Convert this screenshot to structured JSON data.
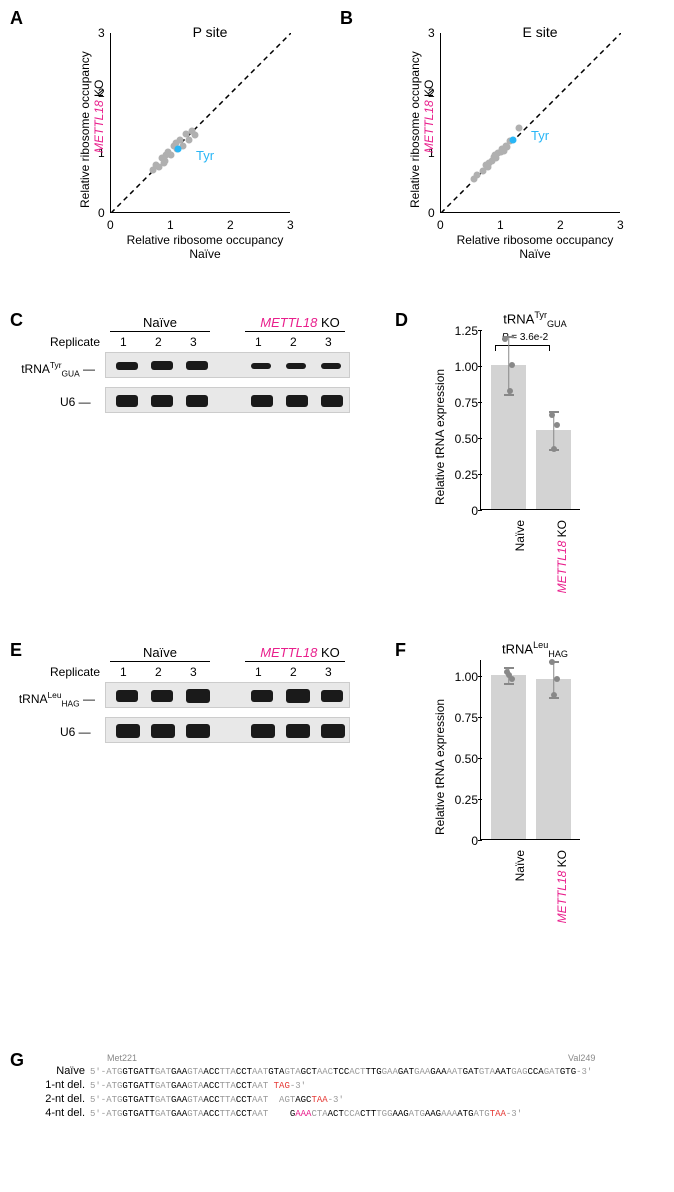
{
  "panels": {
    "A": {
      "label": "A",
      "title": "P site",
      "xlabel_line1": "Relative ribosome occupancy",
      "xlabel_line2": "Naïve",
      "ylabel_line1": "Relative ribosome occupancy",
      "ylabel_line2_a": "METTL18",
      "ylabel_line2_b": " KO",
      "xlim": [
        0,
        3
      ],
      "ylim": [
        0,
        3
      ],
      "xticks": [
        0,
        1,
        2,
        3
      ],
      "yticks": [
        0,
        1,
        2,
        3
      ],
      "diagonal": true,
      "gray_color": "#b0b0b0",
      "cyan_color": "#29b6f6",
      "points_gray": [
        [
          0.7,
          0.7
        ],
        [
          0.75,
          0.78
        ],
        [
          0.8,
          0.75
        ],
        [
          0.85,
          0.9
        ],
        [
          0.9,
          0.85
        ],
        [
          0.92,
          0.95
        ],
        [
          0.95,
          1.0
        ],
        [
          1.0,
          0.95
        ],
        [
          1.05,
          1.1
        ],
        [
          1.1,
          1.05
        ],
        [
          1.15,
          1.2
        ],
        [
          1.2,
          1.1
        ],
        [
          1.25,
          1.3
        ],
        [
          1.3,
          1.2
        ],
        [
          1.35,
          1.35
        ],
        [
          1.4,
          1.28
        ],
        [
          0.88,
          0.82
        ],
        [
          1.08,
          1.15
        ]
      ],
      "point_cyan": [
        1.12,
        1.05
      ],
      "point_label": "Tyr"
    },
    "B": {
      "label": "B",
      "title": "E site",
      "xlabel_line1": "Relative ribosome occupancy",
      "xlabel_line2": "Naïve",
      "ylabel_line1": "Relative ribosome occupancy",
      "ylabel_line2_a": "METTL18",
      "ylabel_line2_b": " KO",
      "xlim": [
        0,
        3
      ],
      "ylim": [
        0,
        3
      ],
      "xticks": [
        0,
        1,
        2,
        3
      ],
      "yticks": [
        0,
        1,
        2,
        3
      ],
      "diagonal": true,
      "gray_color": "#b0b0b0",
      "cyan_color": "#29b6f6",
      "points_gray": [
        [
          0.55,
          0.55
        ],
        [
          0.6,
          0.62
        ],
        [
          0.7,
          0.68
        ],
        [
          0.75,
          0.78
        ],
        [
          0.8,
          0.82
        ],
        [
          0.85,
          0.85
        ],
        [
          0.88,
          0.92
        ],
        [
          0.92,
          0.9
        ],
        [
          0.95,
          0.98
        ],
        [
          1.0,
          1.0
        ],
        [
          1.02,
          1.05
        ],
        [
          1.05,
          1.02
        ],
        [
          1.08,
          1.1
        ],
        [
          1.1,
          1.08
        ],
        [
          1.15,
          1.18
        ],
        [
          1.3,
          1.4
        ],
        [
          0.78,
          0.75
        ],
        [
          0.9,
          0.95
        ]
      ],
      "point_cyan": [
        1.2,
        1.2
      ],
      "point_label": "Tyr"
    },
    "C": {
      "label": "C",
      "header1": "Naïve",
      "header2_a": "METTL18",
      "header2_b": " KO",
      "replicate_label": "Replicate",
      "replicates": [
        "1",
        "2",
        "3"
      ],
      "row1_label_a": "tRNA",
      "row1_label_b": "Tyr",
      "row1_label_c": "GUA",
      "row2_label": "U6"
    },
    "D": {
      "label": "D",
      "title_a": "tRNA",
      "title_b": "Tyr",
      "title_c": "GUA",
      "ylabel": "Relative tRNA expression",
      "yticks": [
        "0",
        "0.25",
        "0.50",
        "0.75",
        "1.00",
        "1.25"
      ],
      "ylim": [
        0,
        1.25
      ],
      "bars": [
        {
          "label": "Naïve",
          "value": 1.0,
          "dots": [
            1.0,
            1.18,
            0.82
          ],
          "err": 0.2,
          "label_color": "#000"
        },
        {
          "label_a": "METTL18",
          "label_b": " KO",
          "value": 0.55,
          "dots": [
            0.65,
            0.58,
            0.42
          ],
          "err": 0.13,
          "label_color": "#e91e8c"
        }
      ],
      "pvalue_a": "P",
      "pvalue_b": " = 3.6e-2",
      "bar_color": "#d3d3d3"
    },
    "E": {
      "label": "E",
      "header1": "Naïve",
      "header2_a": "METTL18",
      "header2_b": " KO",
      "replicate_label": "Replicate",
      "replicates": [
        "1",
        "2",
        "3"
      ],
      "row1_label_a": "tRNA",
      "row1_label_b": "Leu",
      "row1_label_c": "HAG",
      "row2_label": "U6"
    },
    "F": {
      "label": "F",
      "title_a": "tRNA",
      "title_b": "Leu",
      "title_c": "HAG",
      "ylabel": "Relative tRNA expression",
      "yticks": [
        "0",
        "0.25",
        "0.50",
        "0.75",
        "1.00"
      ],
      "ylim": [
        0,
        1.1
      ],
      "bars": [
        {
          "label": "Naïve",
          "value": 1.0,
          "dots": [
            1.02,
            0.98,
            1.0
          ],
          "err": 0.05,
          "label_color": "#000"
        },
        {
          "label_a": "METTL18",
          "label_b": " KO",
          "value": 0.98,
          "dots": [
            1.08,
            0.98,
            0.88
          ],
          "err": 0.11,
          "label_color": "#e91e8c"
        }
      ],
      "bar_color": "#d3d3d3"
    },
    "G": {
      "label": "G",
      "marker_left": "Met221",
      "marker_right": "Val249",
      "rows": [
        {
          "label": "Naïve",
          "prefix": "5'-",
          "segments": [
            {
              "text": "ATG",
              "color": "#999"
            },
            {
              "text": "GTGATT",
              "color": "#000"
            },
            {
              "text": "GAT",
              "color": "#999"
            },
            {
              "text": "GAA",
              "color": "#000"
            },
            {
              "text": "GTA",
              "color": "#999"
            },
            {
              "text": "ACC",
              "color": "#000"
            },
            {
              "text": "TTA",
              "color": "#999"
            },
            {
              "text": "CCT",
              "color": "#000"
            },
            {
              "text": "AAT",
              "color": "#999"
            },
            {
              "text": "GTA",
              "color": "#000"
            },
            {
              "text": "GTA",
              "color": "#999"
            },
            {
              "text": "GCT",
              "color": "#000"
            },
            {
              "text": "AAC",
              "color": "#999"
            },
            {
              "text": "TCC",
              "color": "#000"
            },
            {
              "text": "ACT",
              "color": "#999"
            },
            {
              "text": "TTG",
              "color": "#000"
            },
            {
              "text": "GAA",
              "color": "#999"
            },
            {
              "text": "GAT",
              "color": "#000"
            },
            {
              "text": "GAA",
              "color": "#999"
            },
            {
              "text": "GAA",
              "color": "#000"
            },
            {
              "text": "AAT",
              "color": "#999"
            },
            {
              "text": "GAT",
              "color": "#000"
            },
            {
              "text": "GTA",
              "color": "#999"
            },
            {
              "text": "AAT",
              "color": "#000"
            },
            {
              "text": "GAG",
              "color": "#999"
            },
            {
              "text": "CCA",
              "color": "#000"
            },
            {
              "text": "GAT",
              "color": "#999"
            },
            {
              "text": "GTG",
              "color": "#000"
            }
          ],
          "suffix": "-3'"
        },
        {
          "label": "1-nt del.",
          "prefix": "5'-",
          "segments": [
            {
              "text": "ATG",
              "color": "#999"
            },
            {
              "text": "GTGATT",
              "color": "#000"
            },
            {
              "text": "GAT",
              "color": "#999"
            },
            {
              "text": "GAA",
              "color": "#000"
            },
            {
              "text": "GTA",
              "color": "#999"
            },
            {
              "text": "ACC",
              "color": "#000"
            },
            {
              "text": "TTA",
              "color": "#999"
            },
            {
              "text": "CCT",
              "color": "#000"
            },
            {
              "text": "AAT",
              "color": "#999"
            },
            {
              "text": " ",
              "color": "#000"
            },
            {
              "text": "TAG",
              "color": "#e53935"
            }
          ],
          "suffix": "-3'"
        },
        {
          "label": "2-nt del.",
          "prefix": "5'-",
          "segments": [
            {
              "text": "ATG",
              "color": "#999"
            },
            {
              "text": "GTGATT",
              "color": "#000"
            },
            {
              "text": "GAT",
              "color": "#999"
            },
            {
              "text": "GAA",
              "color": "#000"
            },
            {
              "text": "GTA",
              "color": "#999"
            },
            {
              "text": "ACC",
              "color": "#000"
            },
            {
              "text": "TTA",
              "color": "#999"
            },
            {
              "text": "CCT",
              "color": "#000"
            },
            {
              "text": "AAT",
              "color": "#999"
            },
            {
              "text": "  ",
              "color": "#000"
            },
            {
              "text": "AGT",
              "color": "#999"
            },
            {
              "text": "AGC",
              "color": "#000"
            },
            {
              "text": "TAA",
              "color": "#e53935"
            }
          ],
          "suffix": "-3'"
        },
        {
          "label": "4-nt del.",
          "prefix": "5'-",
          "segments": [
            {
              "text": "ATG",
              "color": "#999"
            },
            {
              "text": "GTGATT",
              "color": "#000"
            },
            {
              "text": "GAT",
              "color": "#999"
            },
            {
              "text": "GAA",
              "color": "#000"
            },
            {
              "text": "GTA",
              "color": "#999"
            },
            {
              "text": "ACC",
              "color": "#000"
            },
            {
              "text": "TTA",
              "color": "#999"
            },
            {
              "text": "CCT",
              "color": "#000"
            },
            {
              "text": "AAT",
              "color": "#999"
            },
            {
              "text": "    G",
              "color": "#000"
            },
            {
              "text": "AAA",
              "color": "#e91e8c"
            },
            {
              "text": "CTA",
              "color": "#999"
            },
            {
              "text": "ACT",
              "color": "#000"
            },
            {
              "text": "CCA",
              "color": "#999"
            },
            {
              "text": "CTT",
              "color": "#000"
            },
            {
              "text": "TGG",
              "color": "#999"
            },
            {
              "text": "AAG",
              "color": "#000"
            },
            {
              "text": "ATG",
              "color": "#999"
            },
            {
              "text": "AAG",
              "color": "#000"
            },
            {
              "text": "AAA",
              "color": "#999"
            },
            {
              "text": "ATG",
              "color": "#000"
            },
            {
              "text": "ATG",
              "color": "#999"
            },
            {
              "text": "TAA",
              "color": "#e53935"
            }
          ],
          "suffix": "-3'"
        }
      ]
    }
  }
}
